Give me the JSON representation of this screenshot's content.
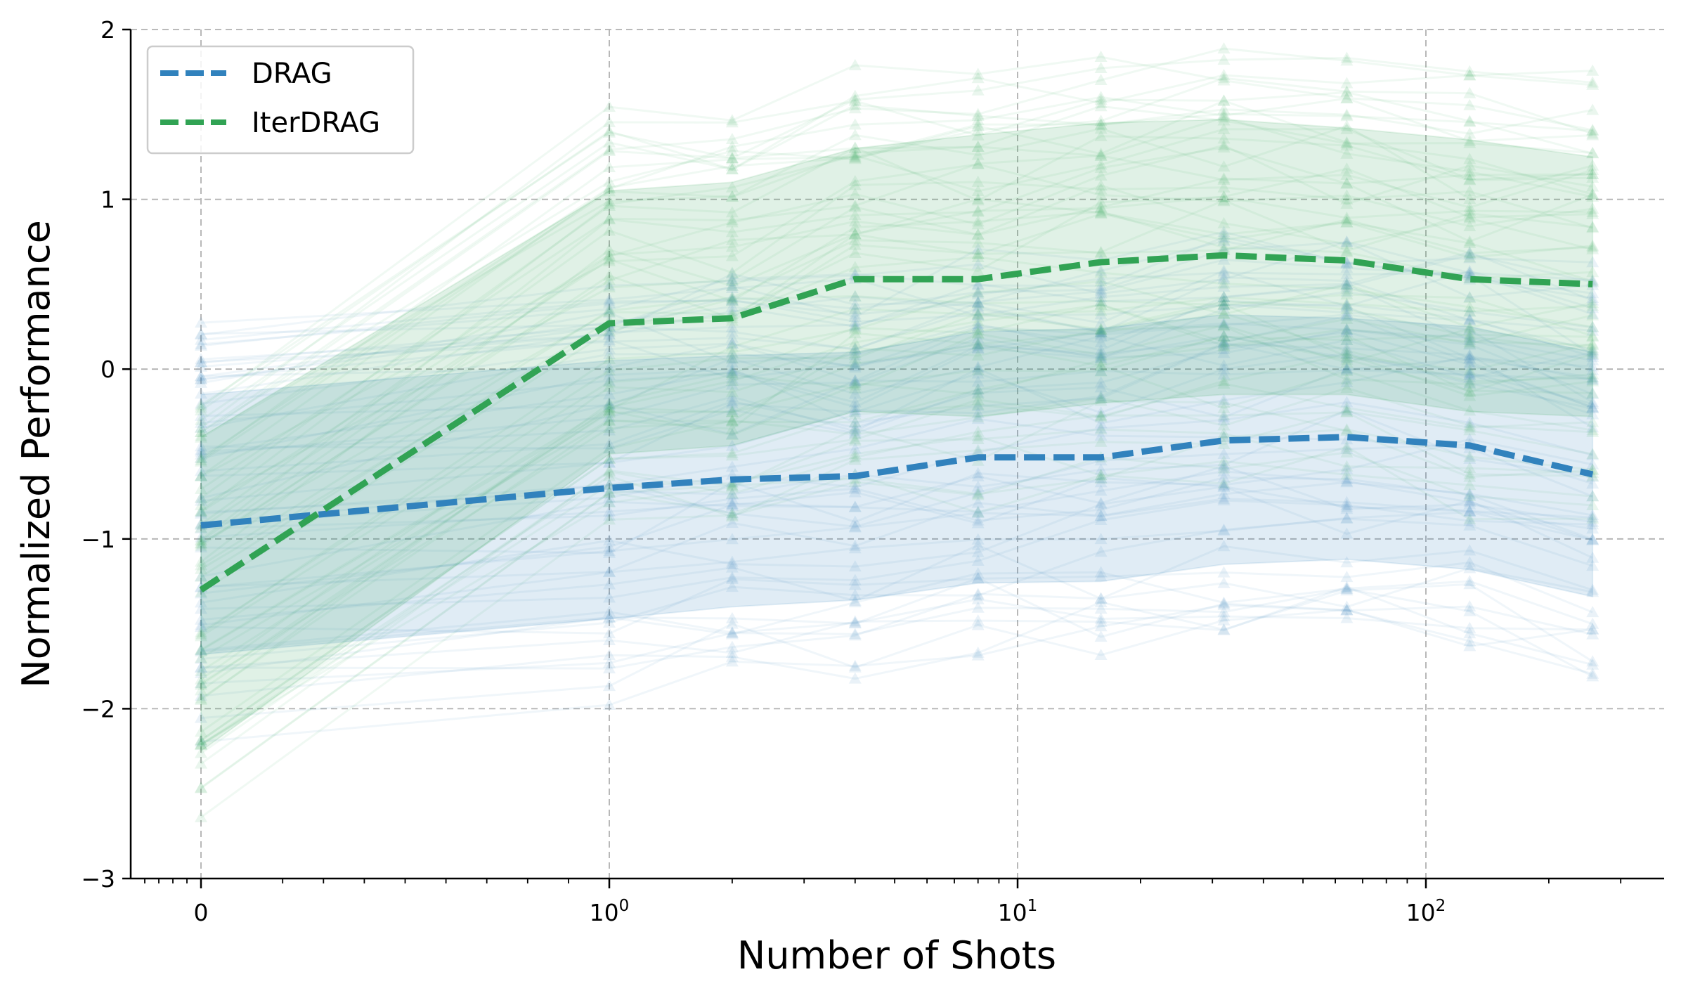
{
  "chart_data": {
    "type": "line",
    "xlabel": "Number of Shots",
    "ylabel": "Normalized Performance",
    "xscale": "symlog",
    "x": [
      0,
      1,
      2,
      4,
      8,
      16,
      32,
      64,
      128,
      256
    ],
    "xticks": [
      {
        "value": 0,
        "label": "0",
        "exp": ""
      },
      {
        "value": 1,
        "label": "10",
        "exp": "0"
      },
      {
        "value": 10,
        "label": "10",
        "exp": "1"
      },
      {
        "value": 100,
        "label": "10",
        "exp": "2"
      }
    ],
    "yticks": [
      "2",
      "1",
      "0",
      "−1",
      "−2",
      "−3"
    ],
    "ylim": [
      -3,
      2
    ],
    "grid": true,
    "legend_position": "top-left",
    "series": [
      {
        "name": "DRAG",
        "color": "#3182bd",
        "values": [
          -0.92,
          -0.7,
          -0.65,
          -0.63,
          -0.52,
          -0.52,
          -0.42,
          -0.4,
          -0.45,
          -0.62
        ],
        "band_upper": [
          -0.15,
          0.05,
          0.08,
          0.1,
          0.22,
          0.24,
          0.32,
          0.3,
          0.25,
          0.1
        ],
        "band_lower": [
          -1.68,
          -1.47,
          -1.4,
          -1.36,
          -1.26,
          -1.25,
          -1.15,
          -1.12,
          -1.18,
          -1.34
        ]
      },
      {
        "name": "IterDRAG",
        "color": "#31a354",
        "values": [
          -1.3,
          0.27,
          0.3,
          0.53,
          0.53,
          0.63,
          0.67,
          0.64,
          0.53,
          0.5
        ],
        "band_upper": [
          -0.4,
          1.05,
          1.1,
          1.3,
          1.38,
          1.45,
          1.47,
          1.42,
          1.35,
          1.25
        ],
        "band_lower": [
          -2.25,
          -0.5,
          -0.45,
          -0.25,
          -0.28,
          -0.2,
          -0.15,
          -0.15,
          -0.25,
          -0.28
        ]
      }
    ]
  }
}
